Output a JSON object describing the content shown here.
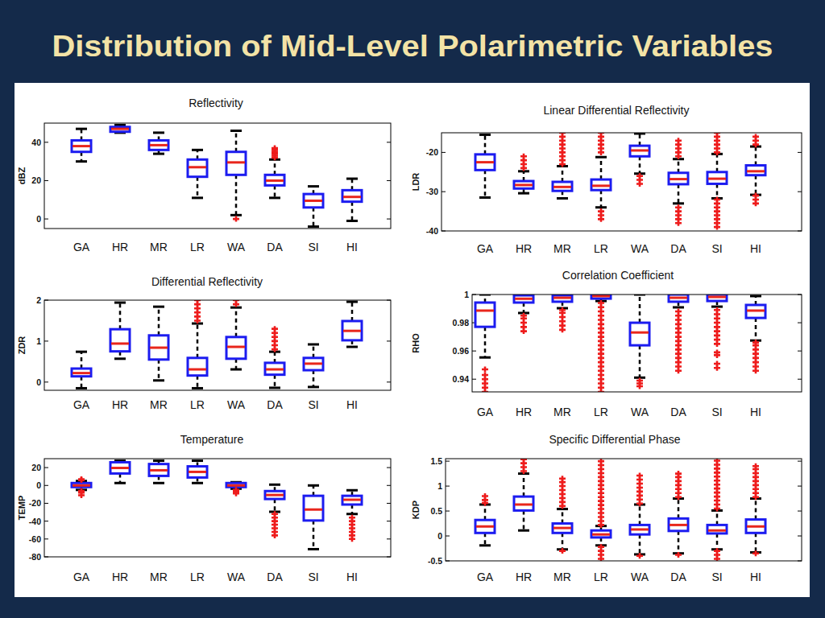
{
  "title": "Distribution of Mid-Level Polarimetric Variables",
  "chart_data": [
    {
      "type": "box",
      "title": "Reflectivity",
      "y_label": "dBZ",
      "categories": [
        "GA",
        "HR",
        "MR",
        "LR",
        "WA",
        "DA",
        "SI",
        "HI"
      ],
      "ylim": [
        -5,
        50
      ],
      "yticks": [
        0,
        20,
        40
      ],
      "grid": false,
      "color": "#1c1cf0",
      "stats": [
        {
          "low": 30,
          "q1": 35,
          "median": 38,
          "q3": 41,
          "high": 47,
          "outliers": []
        },
        {
          "low": 45,
          "q1": 45.5,
          "median": 47,
          "q3": 48,
          "high": 49,
          "outliers": []
        },
        {
          "low": 34,
          "q1": 36,
          "median": 38.5,
          "q3": 41,
          "high": 45,
          "outliers": []
        },
        {
          "low": 11,
          "q1": 22,
          "median": 27,
          "q3": 31,
          "high": 36,
          "outliers": []
        },
        {
          "low": 2,
          "q1": 23,
          "median": 29.5,
          "q3": 35,
          "high": 46,
          "outliers": [
            0
          ]
        },
        {
          "low": 11,
          "q1": 17.5,
          "median": 20,
          "q3": 23,
          "high": 31,
          "outliers": [
            32,
            33,
            34,
            35,
            36,
            37
          ]
        },
        {
          "low": -4,
          "q1": 6,
          "median": 9.5,
          "q3": 13,
          "high": 17,
          "outliers": []
        },
        {
          "low": -1,
          "q1": 9,
          "median": 11.5,
          "q3": 15,
          "high": 21,
          "outliers": []
        }
      ]
    },
    {
      "type": "box",
      "title": "Linear Differential Reflectivity",
      "y_label": "LDR",
      "categories": [
        "GA",
        "HR",
        "MR",
        "LR",
        "WA",
        "DA",
        "SI",
        "HI"
      ],
      "ylim": [
        -40,
        -15
      ],
      "yticks": [
        -40,
        -30,
        -20
      ],
      "grid": false,
      "color": "#1c1cf0",
      "stats": [
        {
          "low": -31.5,
          "q1": -24.5,
          "median": -22.5,
          "q3": -20.5,
          "high": -15.5,
          "outliers": []
        },
        {
          "low": -30.4,
          "q1": -29.2,
          "median": -28.3,
          "q3": -27.3,
          "high": -24.8,
          "outliers": [
            -21,
            -22,
            -23,
            -24
          ]
        },
        {
          "low": -31.7,
          "q1": -29.8,
          "median": -28.8,
          "q3": -27.5,
          "high": -23.5,
          "outliers": [
            -15,
            -16,
            -17,
            -18,
            -19,
            -20,
            -21,
            -22,
            -23
          ]
        },
        {
          "low": -34,
          "q1": -29.6,
          "median": -28.5,
          "q3": -26.9,
          "high": -21.2,
          "outliers": [
            -15,
            -16,
            -17,
            -18,
            -19,
            -20,
            -35,
            -36,
            -37
          ]
        },
        {
          "low": -25.4,
          "q1": -21,
          "median": -19.5,
          "q3": -18.3,
          "high": -15.2,
          "outliers": [
            -26,
            -27,
            -28
          ]
        },
        {
          "low": -33,
          "q1": -28.1,
          "median": -26.8,
          "q3": -25.2,
          "high": -21.7,
          "outliers": [
            -17,
            -18,
            -19,
            -20,
            -21,
            -34,
            -35,
            -36,
            -37,
            -38
          ]
        },
        {
          "low": -31.7,
          "q1": -28,
          "median": -26.7,
          "q3": -25,
          "high": -20.4,
          "outliers": [
            -15,
            -16,
            -17,
            -18,
            -19,
            -20,
            -32,
            -33,
            -34,
            -35,
            -36,
            -37,
            -38,
            -39
          ]
        },
        {
          "low": -30.8,
          "q1": -25.8,
          "median": -24.8,
          "q3": -23.3,
          "high": -18.5,
          "outliers": [
            -16,
            -17,
            -18,
            -31,
            -32,
            -33
          ]
        }
      ]
    },
    {
      "type": "box",
      "title": "Differential Reflectivity",
      "y_label": "ZDR",
      "categories": [
        "GA",
        "HR",
        "MR",
        "LR",
        "WA",
        "DA",
        "SI",
        "HI"
      ],
      "ylim": [
        -0.2,
        2
      ],
      "yticks": [
        0,
        1,
        2
      ],
      "grid": false,
      "color": "#1c1cf0",
      "stats": [
        {
          "low": -0.15,
          "q1": 0.14,
          "median": 0.22,
          "q3": 0.33,
          "high": 0.74,
          "outliers": []
        },
        {
          "low": 0.57,
          "q1": 0.75,
          "median": 0.94,
          "q3": 1.29,
          "high": 1.94,
          "outliers": []
        },
        {
          "low": 0.04,
          "q1": 0.55,
          "median": 0.84,
          "q3": 1.14,
          "high": 1.84,
          "outliers": []
        },
        {
          "low": -0.15,
          "q1": 0.16,
          "median": 0.31,
          "q3": 0.59,
          "high": 1.43,
          "outliers": [
            1.5,
            1.6,
            1.7,
            1.8,
            1.9,
            2.0
          ]
        },
        {
          "low": 0.31,
          "q1": 0.57,
          "median": 0.86,
          "q3": 1.1,
          "high": 1.82,
          "outliers": [
            1.9,
            2.0
          ]
        },
        {
          "low": -0.14,
          "q1": 0.18,
          "median": 0.31,
          "q3": 0.47,
          "high": 0.74,
          "outliers": [
            0.8,
            0.9,
            1.0,
            1.1,
            1.2,
            1.3
          ]
        },
        {
          "low": -0.12,
          "q1": 0.29,
          "median": 0.45,
          "q3": 0.59,
          "high": 0.92,
          "outliers": []
        },
        {
          "low": 0.86,
          "q1": 1.02,
          "median": 1.25,
          "q3": 1.49,
          "high": 1.96,
          "outliers": []
        }
      ]
    },
    {
      "type": "box",
      "title": "Correlation Coefficient",
      "y_label": "RHO",
      "categories": [
        "GA",
        "HR",
        "MR",
        "LR",
        "WA",
        "DA",
        "SI",
        "HI"
      ],
      "ylim": [
        0.931,
        1
      ],
      "yticks": [
        0.94,
        0.96,
        0.98,
        1
      ],
      "grid": false,
      "color": "#1c1cf0",
      "stats": [
        {
          "low": 0.9554,
          "q1": 0.9771,
          "median": 0.9886,
          "q3": 0.9943,
          "high": 1.0,
          "outliers": [
            0.931,
            0.934,
            0.937,
            0.94,
            0.943,
            0.947
          ]
        },
        {
          "low": 0.9869,
          "q1": 0.9943,
          "median": 0.997,
          "q3": 0.9994,
          "high": 1.0,
          "outliers": [
            0.974,
            0.977,
            0.98,
            0.983,
            0.985
          ]
        },
        {
          "low": 0.9903,
          "q1": 0.9949,
          "median": 0.9977,
          "q3": 0.9994,
          "high": 1.0,
          "outliers": [
            0.975,
            0.978,
            0.981,
            0.984,
            0.987,
            0.989
          ]
        },
        {
          "low": 0.9954,
          "q1": 0.9971,
          "median": 0.9989,
          "q3": 1.0,
          "high": 1.0,
          "outliers": [
            0.931,
            0.934,
            0.937,
            0.94,
            0.943,
            0.946,
            0.949,
            0.952,
            0.955,
            0.958,
            0.961,
            0.964,
            0.967,
            0.97,
            0.973,
            0.976,
            0.979,
            0.982,
            0.985,
            0.988,
            0.991,
            0.994
          ]
        },
        {
          "low": 0.9411,
          "q1": 0.964,
          "median": 0.9731,
          "q3": 0.98,
          "high": 1.0,
          "outliers": [
            0.935,
            0.937,
            0.939
          ]
        },
        {
          "low": 0.9909,
          "q1": 0.9949,
          "median": 0.9977,
          "q3": 1.0,
          "high": 1.0,
          "outliers": [
            0.946,
            0.949,
            0.952,
            0.955,
            0.958,
            0.961,
            0.964,
            0.967,
            0.97,
            0.973,
            0.976,
            0.979,
            0.982,
            0.985,
            0.988
          ]
        },
        {
          "low": 0.9914,
          "q1": 0.9954,
          "median": 0.9983,
          "q3": 1.0,
          "high": 1.0,
          "outliers": [
            0.948,
            0.951,
            0.957,
            0.959,
            0.965,
            0.968,
            0.971,
            0.974,
            0.977,
            0.98,
            0.983,
            0.986,
            0.989
          ]
        },
        {
          "low": 0.9674,
          "q1": 0.9834,
          "median": 0.9886,
          "q3": 0.9926,
          "high": 0.9989,
          "outliers": [
            0.946,
            0.949,
            0.952,
            0.955,
            0.958,
            0.961,
            0.964,
            0.966
          ]
        }
      ]
    },
    {
      "type": "box",
      "title": "Temperature",
      "y_label": "TEMP",
      "categories": [
        "GA",
        "HR",
        "MR",
        "LR",
        "WA",
        "DA",
        "SI",
        "HI"
      ],
      "ylim": [
        -80,
        30
      ],
      "yticks": [
        -80,
        -60,
        -40,
        -20,
        0,
        20
      ],
      "grid": false,
      "color": "#1c1cf0",
      "stats": [
        {
          "low": -5,
          "q1": -1.8,
          "median": 0,
          "q3": 2.7,
          "high": 5,
          "outliers": [
            -11,
            -8,
            -6,
            6,
            7
          ]
        },
        {
          "low": 2.7,
          "q1": 13.4,
          "median": 19.6,
          "q3": 26,
          "high": 27.7,
          "outliers": []
        },
        {
          "low": 2.7,
          "q1": 10.7,
          "median": 17,
          "q3": 24,
          "high": 27.7,
          "outliers": []
        },
        {
          "low": 2.7,
          "q1": 8.9,
          "median": 15.2,
          "q3": 21.4,
          "high": 27.7,
          "outliers": []
        },
        {
          "low": -3.6,
          "q1": -1.8,
          "median": 0,
          "q3": 2.7,
          "high": 3.6,
          "outliers": [
            -5,
            -7,
            -9
          ]
        },
        {
          "low": -29.5,
          "q1": -15.2,
          "median": -10.7,
          "q3": -6.3,
          "high": 0.9,
          "outliers": [
            -32,
            -36,
            -40,
            -44,
            -48,
            -52,
            -56
          ]
        },
        {
          "low": -71.4,
          "q1": -39.3,
          "median": -27,
          "q3": -11.6,
          "high": 0,
          "outliers": []
        },
        {
          "low": -32,
          "q1": -21.4,
          "median": -16,
          "q3": -11.6,
          "high": -5.4,
          "outliers": [
            -36,
            -40,
            -44,
            -48,
            -52,
            -56,
            -60
          ]
        }
      ]
    },
    {
      "type": "box",
      "title": "Specific Differential Phase",
      "y_label": "KDP",
      "categories": [
        "GA",
        "HR",
        "MR",
        "LR",
        "WA",
        "DA",
        "SI",
        "HI"
      ],
      "ylim": [
        -0.5,
        1.55
      ],
      "yticks": [
        -0.5,
        0,
        0.5,
        1,
        1.5
      ],
      "grid": false,
      "color": "#1c1cf0",
      "stats": [
        {
          "low": -0.19,
          "q1": 0.06,
          "median": 0.19,
          "q3": 0.32,
          "high": 0.63,
          "outliers": [
            0.66,
            0.72,
            0.8
          ]
        },
        {
          "low": 0.11,
          "q1": 0.51,
          "median": 0.63,
          "q3": 0.79,
          "high": 1.25,
          "outliers": [
            1.3,
            1.38,
            1.46,
            1.54
          ]
        },
        {
          "low": -0.27,
          "q1": 0.06,
          "median": 0.16,
          "q3": 0.25,
          "high": 0.54,
          "outliers": [
            0.6,
            0.68,
            0.76,
            0.84,
            0.92,
            1.0,
            1.08,
            1.15,
            -0.3
          ]
        },
        {
          "low": -0.19,
          "q1": -0.03,
          "median": 0.03,
          "q3": 0.11,
          "high": 0.2,
          "outliers": [
            0.22,
            0.3,
            0.38,
            0.46,
            0.54,
            0.62,
            0.7,
            0.78,
            0.86,
            0.94,
            1.02,
            1.1,
            1.18,
            1.26,
            1.34,
            1.42,
            1.5,
            -0.22,
            -0.3,
            -0.38,
            -0.46
          ]
        },
        {
          "low": -0.37,
          "q1": 0.03,
          "median": 0.13,
          "q3": 0.22,
          "high": 0.63,
          "outliers": [
            0.65,
            0.73,
            0.81,
            0.89,
            0.97,
            1.05,
            1.13,
            1.21,
            -0.4
          ]
        },
        {
          "low": -0.35,
          "q1": 0.1,
          "median": 0.22,
          "q3": 0.35,
          "high": 0.75,
          "outliers": [
            0.78,
            0.86,
            0.94,
            1.02,
            1.1,
            1.18,
            1.25,
            -0.38
          ]
        },
        {
          "low": -0.27,
          "q1": 0.05,
          "median": 0.11,
          "q3": 0.22,
          "high": 0.51,
          "outliers": [
            0.55,
            0.63,
            0.71,
            0.79,
            0.87,
            0.95,
            1.03,
            1.11,
            1.19,
            1.27,
            1.35,
            1.43,
            1.51,
            -0.3,
            -0.38,
            -0.46
          ]
        },
        {
          "low": -0.33,
          "q1": 0.06,
          "median": 0.19,
          "q3": 0.33,
          "high": 0.75,
          "outliers": [
            0.78,
            0.86,
            0.94,
            1.02,
            1.1,
            1.18,
            1.26,
            1.34,
            1.4,
            -0.35
          ]
        }
      ]
    }
  ]
}
